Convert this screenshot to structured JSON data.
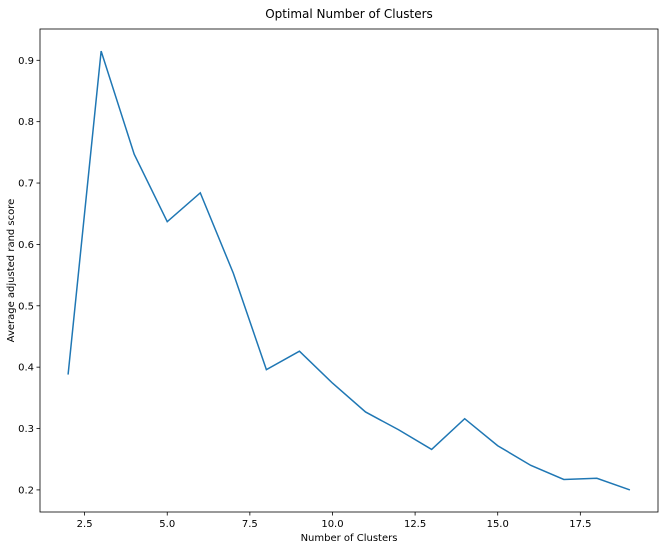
{
  "chart_data": {
    "type": "line",
    "title": "Optimal Number of Clusters",
    "xlabel": "Number of Clusters",
    "ylabel": "Average adjusted rand score",
    "xlim": [
      1.15,
      19.85
    ],
    "ylim": [
      0.164,
      0.951
    ],
    "xticks": [
      2.5,
      5.0,
      7.5,
      10.0,
      12.5,
      15.0,
      17.5
    ],
    "xtick_labels": [
      "2.5",
      "5.0",
      "7.5",
      "10.0",
      "12.5",
      "15.0",
      "17.5"
    ],
    "yticks": [
      0.2,
      0.3,
      0.4,
      0.5,
      0.6,
      0.7,
      0.8,
      0.9
    ],
    "ytick_labels": [
      "0.2",
      "0.3",
      "0.4",
      "0.5",
      "0.6",
      "0.7",
      "0.8",
      "0.9"
    ],
    "grid": false,
    "series": [
      {
        "color": "#1f77b4",
        "x": [
          2,
          3,
          4,
          5,
          6,
          7,
          8,
          9,
          10,
          11,
          12,
          13,
          14,
          15,
          16,
          17,
          18,
          19
        ],
        "y": [
          0.388,
          0.915,
          0.747,
          0.637,
          0.684,
          0.553,
          0.396,
          0.426,
          0.374,
          0.327,
          0.298,
          0.266,
          0.316,
          0.272,
          0.24,
          0.217,
          0.219,
          0.2
        ]
      }
    ]
  }
}
